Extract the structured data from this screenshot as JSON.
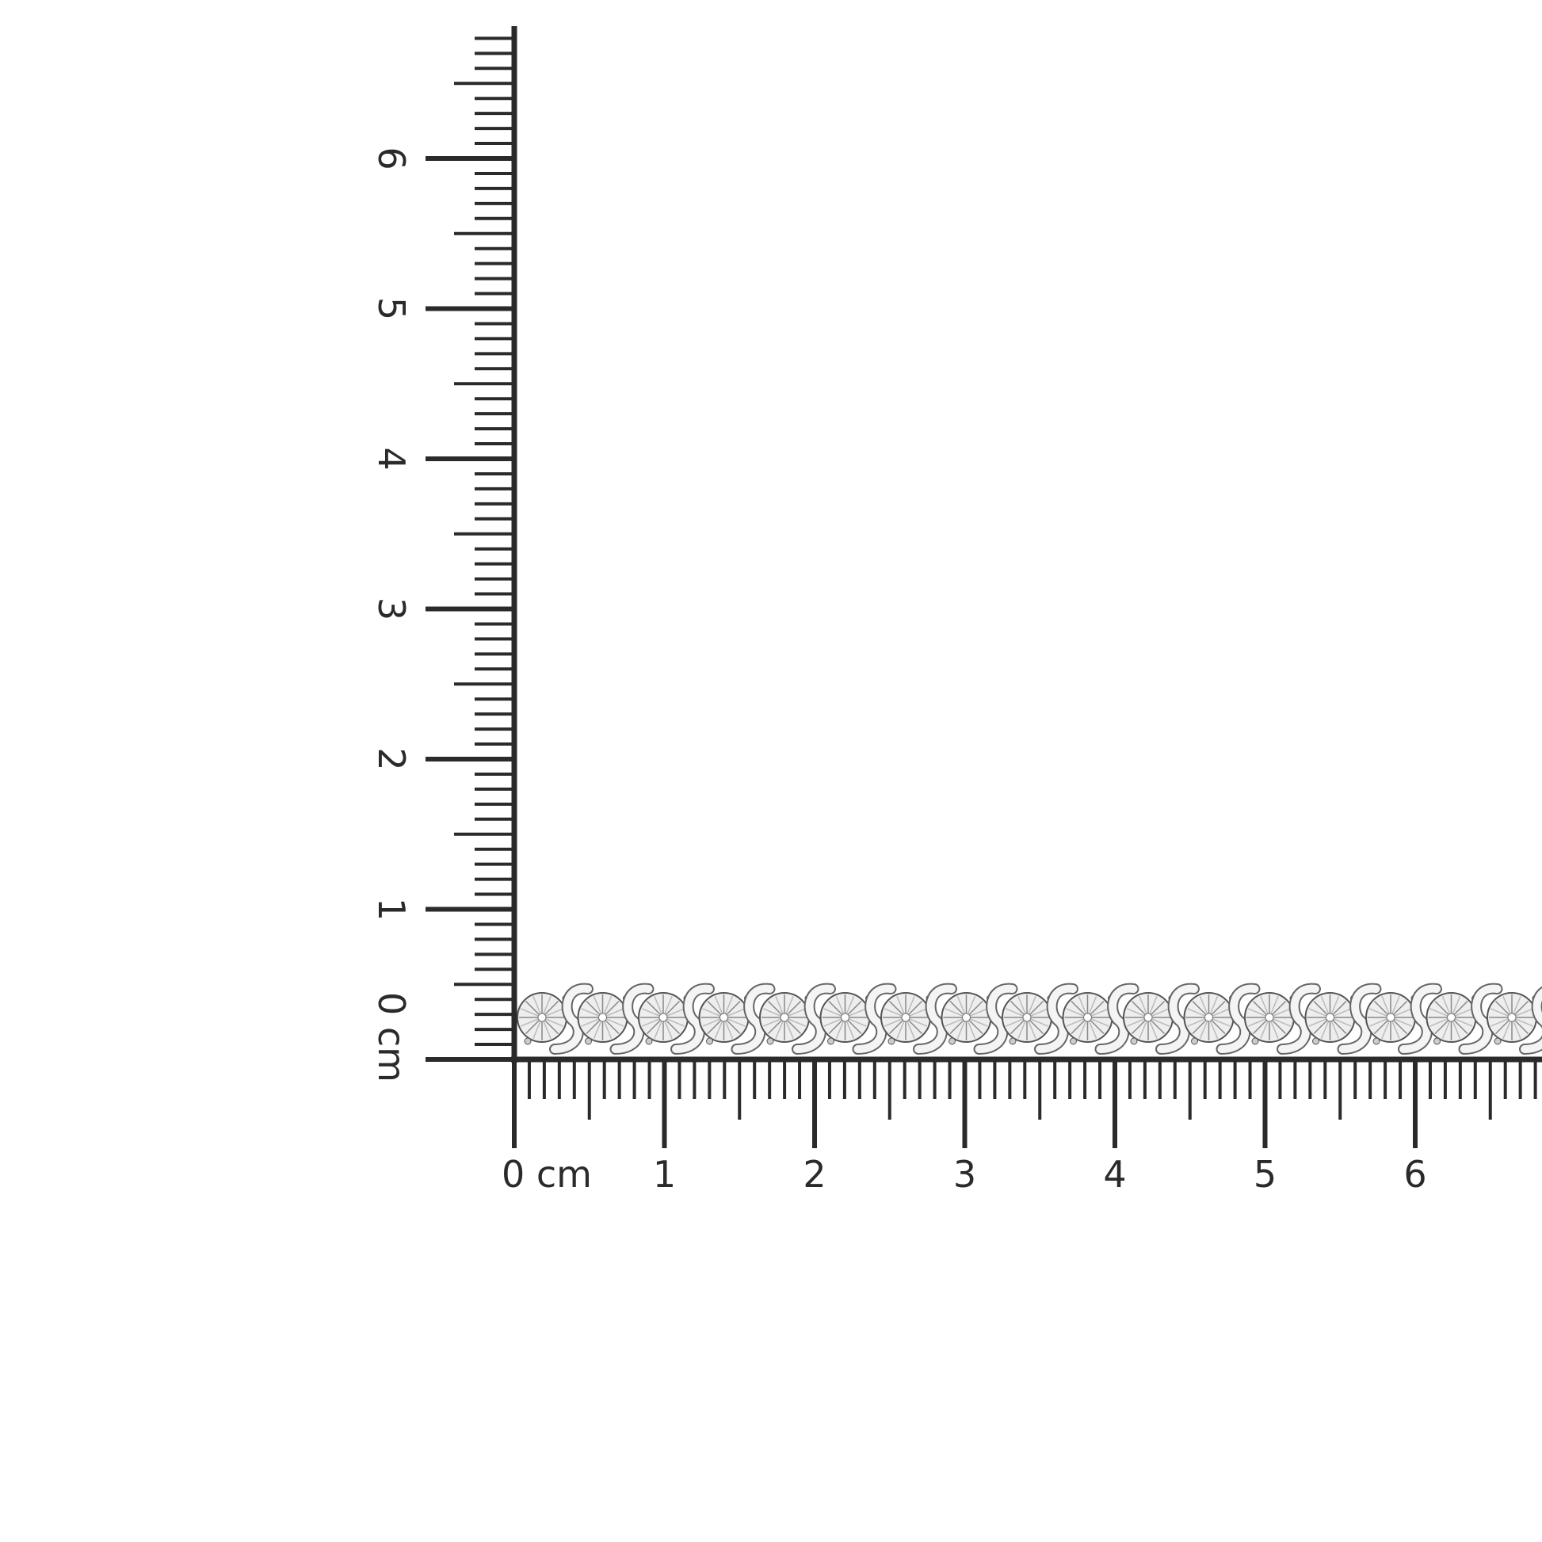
{
  "unit": "cm",
  "horizontal_ruler": {
    "labels": [
      "0 cm",
      "1",
      "2",
      "3",
      "4",
      "5",
      "6"
    ]
  },
  "vertical_ruler": {
    "labels": [
      "0 cm",
      "1",
      "2",
      "3",
      "4",
      "5",
      "6"
    ]
  },
  "colors": {
    "ink": "#2a2a2a",
    "metal": "#d9d9d9",
    "background": "#ffffff"
  }
}
